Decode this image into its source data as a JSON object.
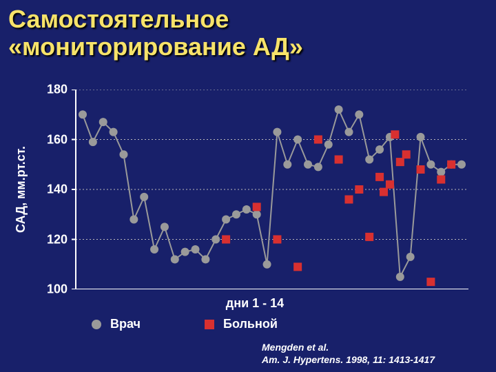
{
  "title_line1": "Самостоятельное",
  "title_line2": "«мониторирование АД»",
  "title_fontsize": 36,
  "title_color": "#f7e36a",
  "background_color": "#18206a",
  "chart": {
    "type": "line+scatter",
    "ylabel": "САД, мм.рт.ст.",
    "ylabel_fontsize": 18,
    "xlabel": "дни 1 - 14",
    "xlabel_fontsize": 18,
    "ylim": [
      100,
      180
    ],
    "yticks": [
      100,
      120,
      140,
      160,
      180
    ],
    "tick_fontsize": 18,
    "axis_color": "#ffffff",
    "gridline_color": "#bbbbbb",
    "gridline_dash": "2,3",
    "line_color": "#9a9a9a",
    "line_marker_color": "#9a9a9a",
    "line_marker_radius": 6,
    "line_width": 2,
    "square_color": "#d83030",
    "square_size": 12,
    "doctor_series": [
      170,
      159,
      167,
      163,
      154,
      128,
      137,
      116,
      125,
      112,
      115,
      116,
      112,
      120,
      128,
      130,
      132,
      130,
      110,
      163,
      150,
      160,
      150,
      149,
      158,
      172,
      163,
      170,
      152,
      156,
      161,
      105,
      113,
      161,
      150,
      147,
      150,
      150
    ],
    "patient_series": {
      "x": [
        14,
        17,
        19,
        21,
        23,
        25,
        26,
        27,
        28,
        29,
        29.4,
        30,
        30.5,
        31,
        31.6,
        33,
        34,
        35,
        36
      ],
      "y": [
        120,
        133,
        120,
        109,
        160,
        152,
        136,
        140,
        121,
        145,
        139,
        142,
        162,
        151,
        154,
        148,
        103,
        144,
        150
      ]
    }
  },
  "legend": {
    "doctor_label": "Врач",
    "patient_label": "Больной",
    "fontsize": 18
  },
  "citation_line1": "Mengden et al.",
  "citation_line2": "Am. J. Hypertens.  1998, 11: 1413-1417",
  "citation_fontsize": 14
}
